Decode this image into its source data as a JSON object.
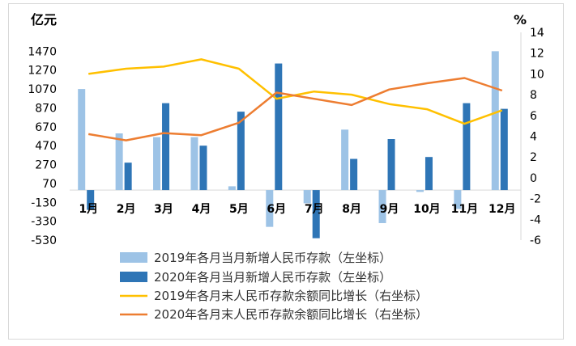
{
  "chart_data": {
    "type": "bar+line",
    "left_axis": {
      "unit": "亿元",
      "ticks": [
        1470,
        1270,
        1070,
        870,
        670,
        470,
        270,
        70,
        -130,
        -330,
        -530
      ],
      "ylim": [
        -530,
        1670
      ]
    },
    "right_axis": {
      "unit": "%",
      "ticks": [
        14,
        12,
        10,
        8,
        6,
        4,
        2,
        0,
        -2,
        -4,
        -6
      ],
      "ylim": [
        -6,
        14
      ]
    },
    "categories": [
      "1月",
      "2月",
      "3月",
      "4月",
      "5月",
      "6月",
      "7月",
      "8月",
      "9月",
      "10月",
      "11月",
      "12月"
    ],
    "bar_series": [
      {
        "name": "2019年各月当月新增人民币存款（左坐标）",
        "color": "#9dc3e6",
        "values": [
          1070,
          600,
          560,
          560,
          40,
          -390,
          -140,
          640,
          -350,
          -20,
          -200,
          1470
        ]
      },
      {
        "name": "2020年各月当月新增人民币存款（左坐标）",
        "color": "#2e75b6",
        "values": [
          -210,
          290,
          920,
          470,
          830,
          1340,
          -510,
          330,
          540,
          350,
          920,
          860
        ]
      }
    ],
    "line_series": [
      {
        "name": "2019年各月末人民币存款余额同比增长（右坐标）",
        "color": "#ffc000",
        "values": [
          10.0,
          10.5,
          10.7,
          11.4,
          10.5,
          7.6,
          8.3,
          8.0,
          7.1,
          6.6,
          5.2,
          6.5
        ]
      },
      {
        "name": "2020年各月末人民币存款余额同比增长（右坐标）",
        "color": "#ed7d31",
        "values": [
          4.2,
          3.6,
          4.3,
          4.1,
          5.3,
          8.2,
          7.6,
          7.0,
          8.5,
          9.1,
          9.6,
          8.4
        ]
      }
    ]
  }
}
